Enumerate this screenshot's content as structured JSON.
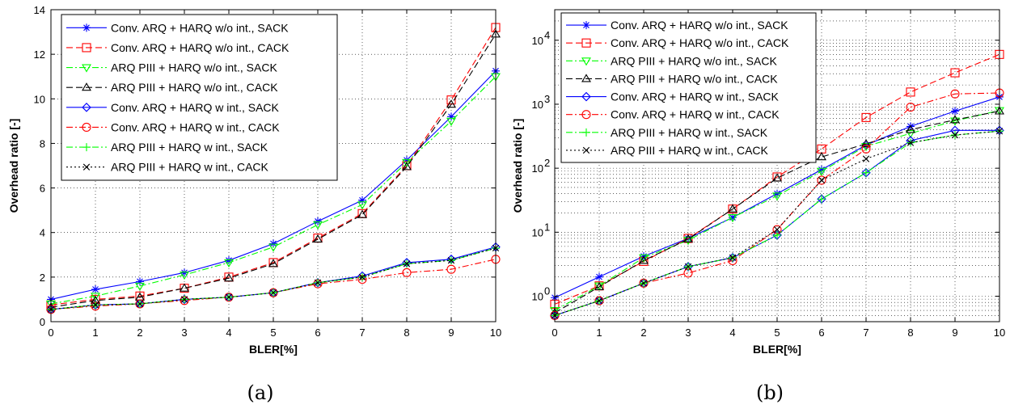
{
  "chart_data": [
    {
      "type": "line",
      "panel_label": "(a)",
      "xlabel": "BLER[%]",
      "ylabel": "Overhead ratio [-]",
      "xlim": [
        0,
        10
      ],
      "ylim": [
        0,
        14
      ],
      "xticks": [
        0,
        1,
        2,
        3,
        4,
        5,
        6,
        7,
        8,
        9,
        10
      ],
      "yticks": [
        0,
        2,
        4,
        6,
        8,
        10,
        12,
        14
      ],
      "grid": true,
      "legend_position": "top-left",
      "x": [
        0,
        1,
        2,
        3,
        4,
        5,
        6,
        7,
        8,
        9,
        10
      ],
      "series": [
        {
          "name": "Conv. ARQ + HARQ w/o int., SACK",
          "color": "#0000ff",
          "dash": "solid",
          "marker": "star",
          "values": [
            1.0,
            1.45,
            1.8,
            2.2,
            2.75,
            3.5,
            4.5,
            5.45,
            7.25,
            9.2,
            11.25
          ]
        },
        {
          "name": "Conv. ARQ + HARQ w/o int., CACK",
          "color": "#ff0000",
          "dash": "dashed",
          "marker": "square",
          "values": [
            0.75,
            1.0,
            1.15,
            1.5,
            2.0,
            2.65,
            3.75,
            4.85,
            7.0,
            9.95,
            13.2
          ]
        },
        {
          "name": "ARQ PIII + HARQ w/o int., SACK",
          "color": "#00ff00",
          "dash": "dashdot",
          "marker": "triangle-down",
          "values": [
            0.8,
            1.15,
            1.6,
            2.1,
            2.65,
            3.35,
            4.35,
            5.25,
            7.15,
            9.0,
            11.0
          ]
        },
        {
          "name": "ARQ PIII + HARQ w/o int., CACK",
          "color": "#000000",
          "dash": "dashed",
          "marker": "triangle-up",
          "values": [
            0.65,
            0.95,
            1.1,
            1.5,
            1.95,
            2.6,
            3.7,
            4.8,
            6.95,
            9.75,
            12.9
          ]
        },
        {
          "name": "Conv. ARQ + HARQ w int., SACK",
          "color": "#0000ff",
          "dash": "solid",
          "marker": "diamond",
          "values": [
            0.55,
            0.75,
            0.8,
            1.0,
            1.1,
            1.3,
            1.75,
            2.05,
            2.65,
            2.8,
            3.35
          ]
        },
        {
          "name": "Conv. ARQ + HARQ w int., CACK",
          "color": "#ff0000",
          "dash": "dashdot",
          "marker": "circle",
          "values": [
            0.55,
            0.7,
            0.8,
            0.95,
            1.1,
            1.3,
            1.7,
            1.9,
            2.2,
            2.35,
            2.8
          ]
        },
        {
          "name": "ARQ PIII + HARQ w int., SACK",
          "color": "#00ff00",
          "dash": "dashdot",
          "marker": "plus",
          "values": [
            0.55,
            0.75,
            0.8,
            1.0,
            1.1,
            1.3,
            1.75,
            2.0,
            2.6,
            2.75,
            3.3
          ]
        },
        {
          "name": "ARQ PIII + HARQ w int., CACK",
          "color": "#000000",
          "dash": "dotted",
          "marker": "x",
          "values": [
            0.55,
            0.75,
            0.8,
            1.0,
            1.1,
            1.3,
            1.75,
            2.0,
            2.6,
            2.75,
            3.3
          ]
        }
      ]
    },
    {
      "type": "line",
      "panel_label": "(b)",
      "xlabel": "BLER[%]",
      "ylabel": "Overhead ratio [-]",
      "xlim": [
        0,
        10
      ],
      "ylim": [
        0.4,
        30000
      ],
      "yscale": "log",
      "xticks": [
        0,
        1,
        2,
        3,
        4,
        5,
        6,
        7,
        8,
        9,
        10
      ],
      "yticks": [
        1,
        10,
        100,
        1000,
        10000
      ],
      "ytick_labels": [
        "10",
        "10",
        "10",
        "10",
        "10"
      ],
      "ytick_exponents": [
        "0",
        "1",
        "2",
        "3",
        "4"
      ],
      "xtick_labels": [
        "0",
        "1",
        "2",
        "3",
        "4",
        "5",
        "6",
        "7",
        "8",
        "9",
        "10"
      ],
      "grid": true,
      "legend_position": "top-left",
      "x": [
        0,
        1,
        2,
        3,
        4,
        5,
        6,
        7,
        8,
        9,
        10
      ],
      "series": [
        {
          "name": "Conv. ARQ + HARQ w/o int., SACK",
          "color": "#0000ff",
          "dash": "solid",
          "marker": "star",
          "values": [
            0.95,
            2.0,
            4.2,
            8.0,
            17,
            40,
            95,
            230,
            450,
            780,
            1300
          ]
        },
        {
          "name": "Conv. ARQ + HARQ w/o int., CACK",
          "color": "#ff0000",
          "dash": "dashed",
          "marker": "square",
          "values": [
            0.75,
            1.45,
            3.5,
            8.0,
            23,
            73,
            200,
            620,
            1550,
            3100,
            6000
          ]
        },
        {
          "name": "ARQ PIII + HARQ w/o int., SACK",
          "color": "#00ff00",
          "dash": "dashdot",
          "marker": "triangle-down",
          "values": [
            0.6,
            1.45,
            4.0,
            7.5,
            17,
            37,
            90,
            220,
            350,
            550,
            800
          ]
        },
        {
          "name": "ARQ PIII + HARQ w/o int., CACK",
          "color": "#000000",
          "dash": "dashed",
          "marker": "triangle-up",
          "values": [
            0.55,
            1.4,
            3.6,
            7.8,
            23,
            70,
            150,
            240,
            400,
            570,
            780
          ]
        },
        {
          "name": "Conv. ARQ + HARQ w int., SACK",
          "color": "#0000ff",
          "dash": "solid",
          "marker": "diamond",
          "values": [
            0.5,
            0.85,
            1.6,
            2.9,
            4.0,
            9.0,
            33,
            85,
            270,
            390,
            390
          ]
        },
        {
          "name": "Conv. ARQ + HARQ w int., CACK",
          "color": "#ff0000",
          "dash": "dashdot",
          "marker": "circle",
          "values": [
            0.5,
            0.85,
            1.6,
            2.3,
            3.6,
            11,
            65,
            200,
            900,
            1450,
            1500
          ]
        },
        {
          "name": "ARQ PIII + HARQ w int., SACK",
          "color": "#00ff00",
          "dash": "dashdot",
          "marker": "plus",
          "values": [
            0.5,
            0.85,
            1.6,
            2.9,
            4.0,
            9.0,
            33,
            85,
            250,
            330,
            380
          ]
        },
        {
          "name": "ARQ PIII + HARQ w int., CACK",
          "color": "#000000",
          "dash": "dotted",
          "marker": "x",
          "values": [
            0.5,
            0.85,
            1.6,
            2.9,
            4.0,
            11,
            65,
            140,
            250,
            330,
            380
          ]
        }
      ]
    }
  ]
}
